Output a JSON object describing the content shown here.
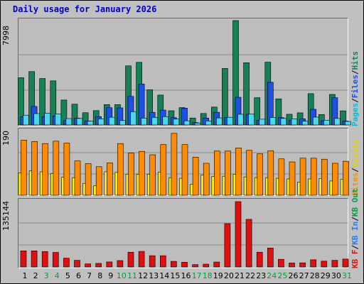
{
  "chart_data": {
    "title": "Daily usage for January 2026",
    "type": "bar",
    "categories": [
      "1",
      "2",
      "3",
      "4",
      "5",
      "6",
      "7",
      "8",
      "9",
      "10",
      "11",
      "12",
      "13",
      "14",
      "15",
      "16",
      "17",
      "18",
      "19",
      "20",
      "21",
      "22",
      "23",
      "24",
      "25",
      "26",
      "27",
      "28",
      "29",
      "30",
      "31"
    ],
    "weekend_days": [
      "3",
      "4",
      "10",
      "11",
      "17",
      "18",
      "24",
      "25",
      "31"
    ],
    "colors": {
      "pages": "#4cd8f0",
      "files": "#1e50e6",
      "hits": "#168056",
      "visits": "#fff000",
      "sites": "#ff8c00",
      "kb": "#e01010",
      "weekend_label": "#00a040",
      "weekday_label": "#000000"
    },
    "panels": [
      {
        "id": "hits",
        "ymax_label": "7998",
        "ylim": [
          0,
          7998
        ],
        "legend": [
          "Pages",
          "Files",
          "Hits"
        ],
        "series": [
          {
            "name": "Hits",
            "values": [
              3620,
              4090,
              3560,
              3380,
              1910,
              1590,
              940,
              1100,
              1560,
              1560,
              4530,
              4800,
              2700,
              2290,
              1090,
              1330,
              530,
              880,
              1370,
              4330,
              7998,
              4770,
              2090,
              4810,
              2000,
              820,
              930,
              2400,
              800,
              2340,
              1080
            ]
          },
          {
            "name": "Files",
            "values": [
              620,
              1420,
              640,
              680,
              330,
              520,
              310,
              640,
              1320,
              1310,
              2190,
              3140,
              970,
              1140,
              560,
              1290,
              180,
              530,
              970,
              560,
              2120,
              820,
              360,
              3270,
              560,
              370,
              470,
              1200,
              320,
              2090,
              300
            ]
          },
          {
            "name": "Pages",
            "values": [
              750,
              870,
              890,
              840,
              490,
              500,
              300,
              470,
              590,
              340,
              1020,
              520,
              580,
              640,
              450,
              320,
              150,
              310,
              540,
              590,
              820,
              830,
              440,
              570,
              500,
              470,
              290,
              600,
              360,
              500,
              270
            ]
          }
        ]
      },
      {
        "id": "visits",
        "ymax_label": "190",
        "ylim": [
          0,
          190
        ],
        "legend": [
          "Visits",
          "Sites"
        ],
        "series": [
          {
            "name": "Sites",
            "values": [
              162,
              158,
              152,
              159,
              153,
              101,
              93,
              84,
              95,
              152,
              124,
              129,
              119,
              149,
              182,
              149,
              112,
              94,
              130,
              130,
              139,
              132,
              122,
              131,
              107,
              98,
              109,
              109,
              106,
              94,
              100
            ]
          },
          {
            "name": "Visits",
            "values": [
              66,
              72,
              69,
              64,
              53,
              52,
              35,
              28,
              69,
              68,
              62,
              62,
              62,
              68,
              52,
              50,
              32,
              59,
              55,
              56,
              62,
              54,
              52,
              52,
              50,
              48,
              39,
              48,
              49,
              42,
              47
            ]
          }
        ]
      },
      {
        "id": "kb",
        "ymax_label": "135144",
        "ylim": [
          0,
          135144
        ],
        "legend": [
          "KB F",
          "KB In",
          "KB Out"
        ],
        "series": [
          {
            "name": "KB F",
            "values": [
              33300,
              33300,
              31900,
              30100,
              18200,
              13800,
              6400,
              7400,
              10400,
              13200,
              30500,
              32200,
              23300,
              23300,
              11600,
              9800,
              4900,
              5800,
              10200,
              89600,
              135144,
              98500,
              30500,
              39200,
              15900,
              8200,
              8500,
              14900,
              11900,
              13700,
              16300
            ]
          }
        ]
      }
    ]
  }
}
